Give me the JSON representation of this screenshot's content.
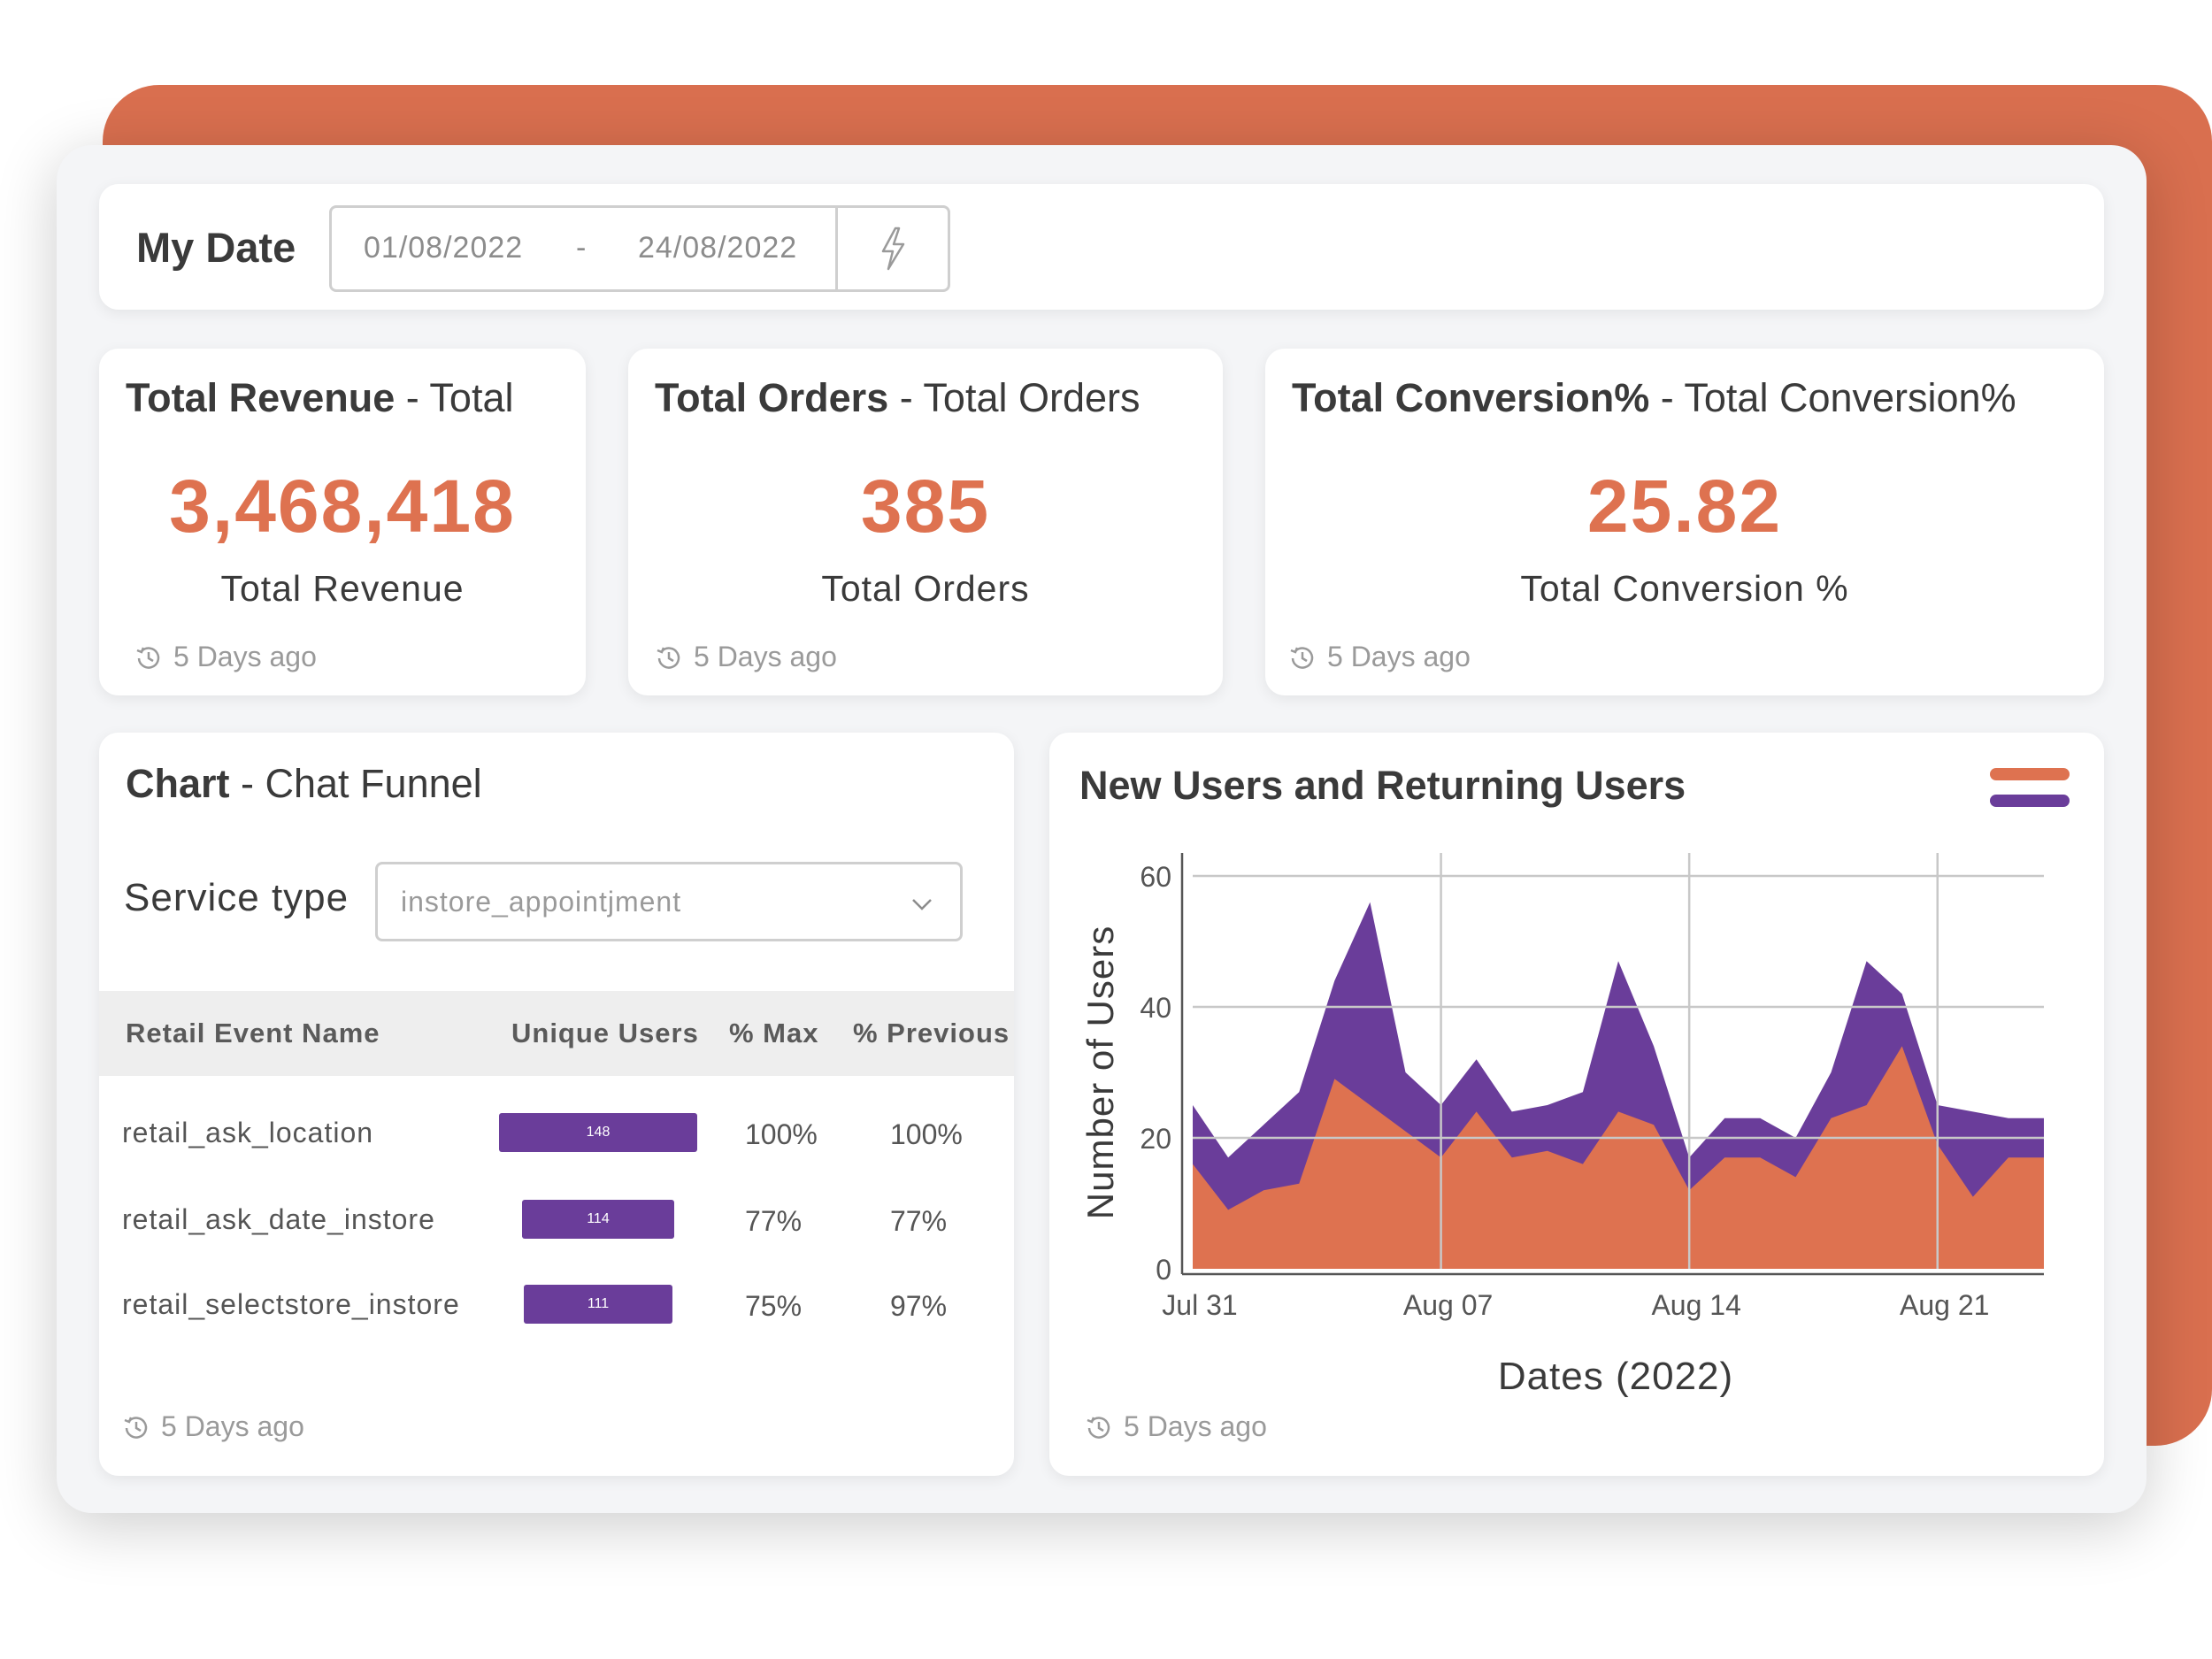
{
  "date_filter": {
    "label": "My Date",
    "from": "01/08/2022",
    "separator": "-",
    "to": "24/08/2022",
    "apply_icon": "lightning-icon"
  },
  "kpis": {
    "revenue": {
      "title_bold": "Total Revenue",
      "title_rest": " - Total",
      "value": "3,468,418",
      "label": "Total Revenue",
      "updated": "5 Days ago"
    },
    "orders": {
      "title_bold": "Total Orders",
      "title_rest": " - Total Orders",
      "value": "385",
      "label": "Total Orders",
      "updated": "5 Days ago"
    },
    "conversion": {
      "title_bold": "Total Conversion%",
      "title_rest": " - Total Conversion%",
      "value": "25.82",
      "label": "Total Conversion %",
      "updated": "5 Days ago"
    }
  },
  "funnel": {
    "title_bold": "Chart",
    "title_rest": " - Chat Funnel",
    "service_label": "Service type",
    "service_value": "instore_appointjment",
    "columns": [
      "Retail Event Name",
      "Unique Users",
      "% Max",
      "% Previous"
    ],
    "rows": [
      {
        "name": "retail_ask_location",
        "users": "148",
        "users_value": 148,
        "pct_max": "100%",
        "pct_prev": "100%"
      },
      {
        "name": "retail_ask_date_instore",
        "users": "114",
        "users_value": 114,
        "pct_max": "77%",
        "pct_prev": "77%"
      },
      {
        "name": "retail_selectstore_instore",
        "users": "111",
        "users_value": 111,
        "pct_max": "75%",
        "pct_prev": "97%"
      }
    ],
    "updated": "5 Days ago"
  },
  "users_chart": {
    "title": "New Users and Returning Users",
    "updated": "5 Days ago",
    "colors": {
      "new": "#de7250",
      "returning": "#6a3d9a",
      "grid": "#c8c8c8"
    },
    "chart_data": {
      "type": "area",
      "stacked": false,
      "xlabel": "Dates (2022)",
      "ylabel": "Number of Users",
      "ylim": [
        0,
        60
      ],
      "yticks": [
        0,
        20,
        40,
        60
      ],
      "xticks": [
        "Jul 31",
        "Aug 07",
        "Aug 14",
        "Aug 21"
      ],
      "grid": true,
      "legend": "top-right",
      "x": [
        "Jul 31",
        "Aug 01",
        "Aug 02",
        "Aug 03",
        "Aug 04",
        "Aug 05",
        "Aug 06",
        "Aug 07",
        "Aug 08",
        "Aug 09",
        "Aug 10",
        "Aug 11",
        "Aug 12",
        "Aug 13",
        "Aug 14",
        "Aug 15",
        "Aug 16",
        "Aug 17",
        "Aug 18",
        "Aug 19",
        "Aug 20",
        "Aug 21",
        "Aug 22",
        "Aug 23",
        "Aug 24"
      ],
      "series": [
        {
          "key": "returning",
          "values": [
            25,
            17,
            22,
            27,
            44,
            56,
            30,
            25,
            32,
            24,
            25,
            27,
            47,
            34,
            17,
            23,
            23,
            20,
            30,
            47,
            42,
            25,
            24,
            23,
            23
          ]
        },
        {
          "key": "new",
          "values": [
            16,
            9,
            12,
            13,
            29,
            25,
            21,
            17,
            24,
            17,
            18,
            16,
            24,
            22,
            12,
            17,
            17,
            14,
            23,
            25,
            34,
            19,
            11,
            17,
            17
          ]
        }
      ]
    }
  }
}
